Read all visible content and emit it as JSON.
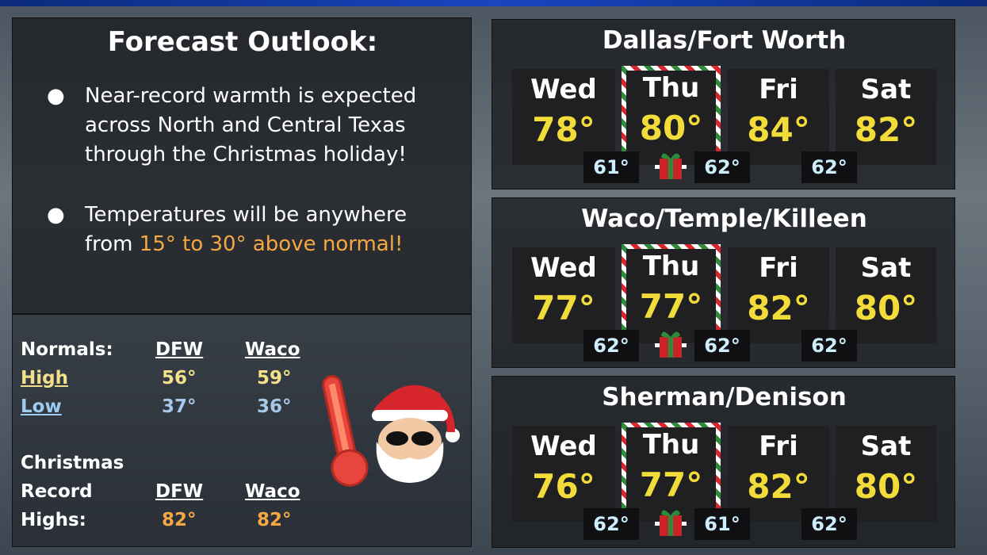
{
  "outlook": {
    "title": "Forecast Outlook:",
    "bullets": [
      {
        "text": "Near-record warmth is expected across North and Central Texas through the Christmas holiday!"
      },
      {
        "text": "Temperatures will be anywhere from",
        "highlight": "15° to 30° above normal!"
      }
    ]
  },
  "normals": {
    "label": "Normals:",
    "columns": [
      "DFW",
      "Waco"
    ],
    "rows": [
      {
        "label": "High",
        "values": [
          "56°",
          "59°"
        ]
      },
      {
        "label": "Low",
        "values": [
          "37°",
          "36°"
        ]
      }
    ]
  },
  "records": {
    "label_lines": [
      "Christmas",
      "Record",
      "Highs:"
    ],
    "columns": [
      "DFW",
      "Waco"
    ],
    "values": [
      "82°",
      "82°"
    ]
  },
  "cities": [
    {
      "name": "Dallas/Fort Worth",
      "days": [
        {
          "day": "Wed",
          "high": "78°"
        },
        {
          "day": "Thu",
          "high": "80°"
        },
        {
          "day": "Fri",
          "high": "84°"
        },
        {
          "day": "Sat",
          "high": "82°"
        }
      ],
      "lows": [
        "61°",
        "62°",
        "62°"
      ]
    },
    {
      "name": "Waco/Temple/Killeen",
      "days": [
        {
          "day": "Wed",
          "high": "77°"
        },
        {
          "day": "Thu",
          "high": "77°"
        },
        {
          "day": "Fri",
          "high": "82°"
        },
        {
          "day": "Sat",
          "high": "80°"
        }
      ],
      "lows": [
        "62°",
        "62°",
        "62°"
      ]
    },
    {
      "name": "Sherman/Denison",
      "days": [
        {
          "day": "Wed",
          "high": "76°"
        },
        {
          "day": "Thu",
          "high": "77°"
        },
        {
          "day": "Fri",
          "high": "82°"
        },
        {
          "day": "Sat",
          "high": "80°"
        }
      ],
      "lows": [
        "62°",
        "61°",
        "62°"
      ]
    }
  ]
}
